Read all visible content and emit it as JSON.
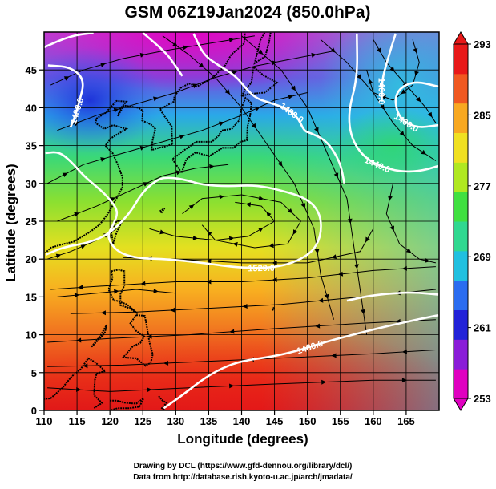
{
  "chart_data": {
    "type": "heatmap",
    "title": "GSM 06Z19Jan2024 (850.0hPa)",
    "xlabel": "Longitude (degrees)",
    "ylabel": "Latitude  (degrees)",
    "xlim": [
      110,
      170
    ],
    "ylim": [
      0,
      50
    ],
    "x_ticks": [
      110,
      115,
      120,
      125,
      130,
      135,
      140,
      145,
      150,
      155,
      160,
      165
    ],
    "y_ticks": [
      0,
      5,
      10,
      15,
      20,
      25,
      30,
      35,
      40,
      45
    ],
    "grid": true,
    "colorbar": {
      "min": 253,
      "max": 293,
      "ticks": [
        253,
        261,
        269,
        277,
        285,
        293
      ],
      "colors": [
        "#e000c0",
        "#8a1cd8",
        "#2222d8",
        "#2a6cf0",
        "#20c0e0",
        "#30d890",
        "#40e040",
        "#b0e820",
        "#f0e020",
        "#f8a820",
        "#f05820",
        "#e81818"
      ]
    },
    "contours": [
      {
        "label": "1520.0",
        "points": [
          [
            110.3,
            20.6
          ],
          [
            113.0,
            21.6
          ],
          [
            117.0,
            22.2
          ],
          [
            120.0,
            23.4
          ],
          [
            123.0,
            26.0
          ],
          [
            124.8,
            28.7
          ],
          [
            127.0,
            30.4
          ],
          [
            128.4,
            30.8
          ],
          [
            131.0,
            30.6
          ],
          [
            134.0,
            29.8
          ],
          [
            138.0,
            29.6
          ],
          [
            142.0,
            29.8
          ],
          [
            146.0,
            29.1
          ],
          [
            150.0,
            28.0
          ],
          [
            152.0,
            26.0
          ],
          [
            152.1,
            23.0
          ],
          [
            150.5,
            20.6
          ],
          [
            146.0,
            18.9
          ],
          [
            140.0,
            18.8
          ],
          [
            134.0,
            19.5
          ],
          [
            129.0,
            20.0
          ],
          [
            124.0,
            20.1
          ],
          [
            121.0,
            21.0
          ],
          [
            119.5,
            23.0
          ],
          [
            120.5,
            24.5
          ],
          [
            121.3,
            26.3
          ],
          [
            120.0,
            27.9
          ],
          [
            118.5,
            29.2
          ],
          [
            116.0,
            31.0
          ],
          [
            114.0,
            33.0
          ],
          [
            112.2,
            34.2
          ],
          [
            110.2,
            34.0
          ]
        ]
      },
      {
        "label": "1480.0",
        "points": [
          [
            132.7,
            49.8
          ],
          [
            134.2,
            47.0
          ],
          [
            136.5,
            45.6
          ],
          [
            139.0,
            44.3
          ],
          [
            140.8,
            42.4
          ],
          [
            142.3,
            41.2
          ],
          [
            144.5,
            40.6
          ],
          [
            146.8,
            39.9
          ],
          [
            148.5,
            38.8
          ],
          [
            149.5,
            36.9
          ],
          [
            150.4,
            36.7
          ],
          [
            153.0,
            35.6
          ],
          [
            155.0,
            32.8
          ],
          [
            155.6,
            30.0
          ]
        ]
      },
      {
        "label": "1480.0",
        "points": [
          [
            110.6,
            45.6
          ],
          [
            114.0,
            45.4
          ],
          [
            116.2,
            43.7
          ],
          [
            115.3,
            40.6
          ],
          [
            114.6,
            38.6
          ],
          [
            114.0,
            37.4
          ]
        ]
      },
      {
        "label": "1440.0",
        "points": [
          [
            157.5,
            49.8
          ],
          [
            157.6,
            44.0
          ],
          [
            156.2,
            39.5
          ],
          [
            156.6,
            36.0
          ],
          [
            158.8,
            33.2
          ],
          [
            162.5,
            31.8
          ],
          [
            165.5,
            31.5
          ],
          [
            168.0,
            31.8
          ],
          [
            169.8,
            32.3
          ]
        ]
      },
      {
        "label": "1400.0",
        "points": [
          [
            169.9,
            42.8
          ],
          [
            166.0,
            43.6
          ],
          [
            163.2,
            42.0
          ],
          [
            163.7,
            38.8
          ],
          [
            166.4,
            37.3
          ],
          [
            169.9,
            37.7
          ]
        ]
      },
      {
        "label": "1400.0",
        "points": [
          [
            163.4,
            49.8
          ],
          [
            162.2,
            46.4
          ],
          [
            161.3,
            43.6
          ],
          [
            161.3,
            40.8
          ]
        ]
      },
      {
        "label": "1480.0",
        "points": [
          [
            128.2,
            0.3
          ],
          [
            131.0,
            2.0
          ],
          [
            134.5,
            4.4
          ],
          [
            138.0,
            6.0
          ],
          [
            141.0,
            6.7
          ],
          [
            144.6,
            7.1
          ],
          [
            148.6,
            7.9
          ],
          [
            152.1,
            8.9
          ],
          [
            156.0,
            9.8
          ],
          [
            160.0,
            10.7
          ],
          [
            164.0,
            11.5
          ],
          [
            169.9,
            12.6
          ]
        ]
      },
      {
        "label": "",
        "points": [
          [
            156.0,
            14.5
          ],
          [
            159.0,
            15.1
          ],
          [
            163.0,
            15.5
          ],
          [
            166.5,
            15.6
          ],
          [
            169.9,
            15.3
          ]
        ]
      },
      {
        "label": "",
        "points": [
          [
            110.0,
            48.0
          ],
          [
            114.0,
            49.5
          ],
          [
            117.5,
            49.9
          ]
        ]
      },
      {
        "label": "",
        "points": [
          [
            125.0,
            49.9
          ],
          [
            128.5,
            47.3
          ],
          [
            130.0,
            45.5
          ],
          [
            131.0,
            44.2
          ]
        ]
      }
    ]
  },
  "credits": {
    "line1": "Drawing by DCL (https://www.gfd-dennou.org/library/dcl/)",
    "line2": "Data from http://database.rish.kyoto-u.ac.jp/arch/jmadata/"
  }
}
